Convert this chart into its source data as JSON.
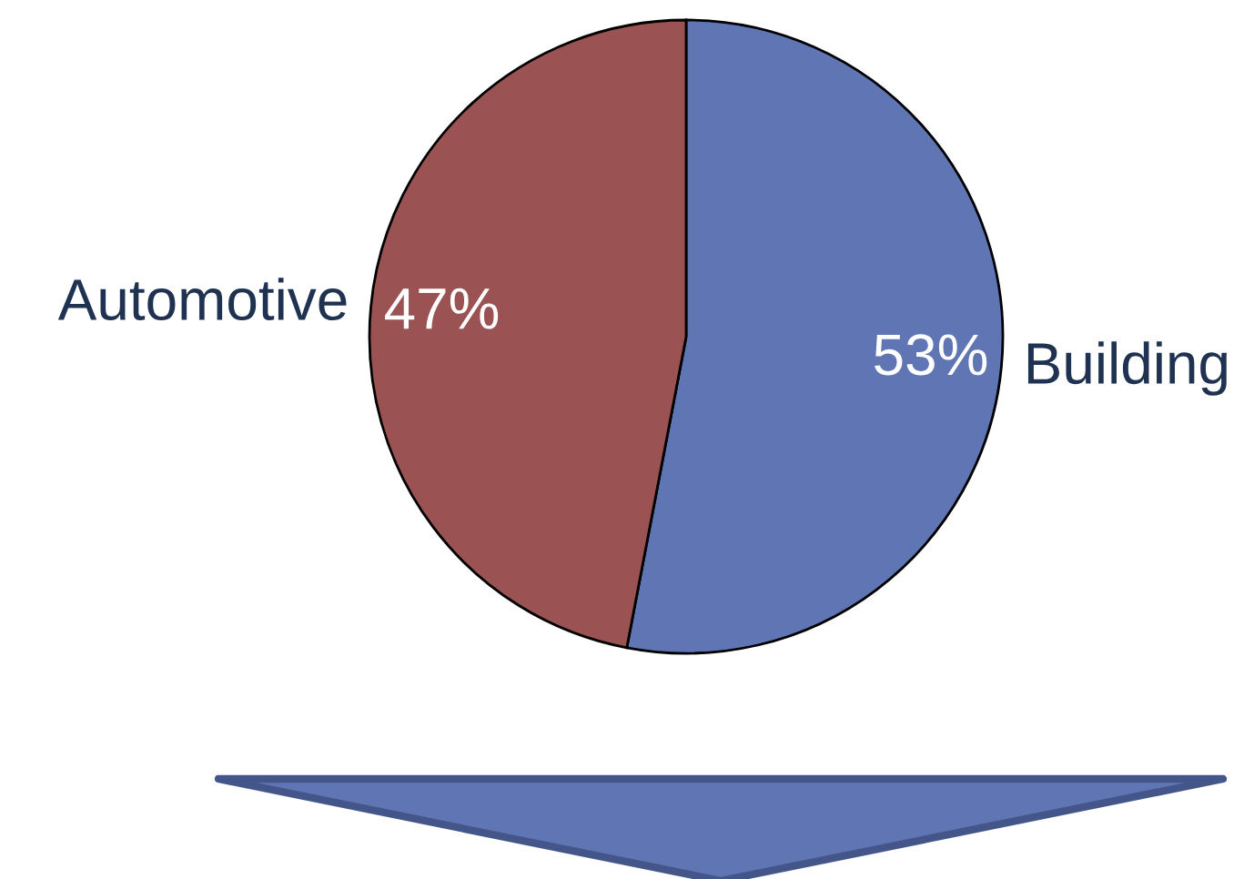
{
  "chart_data": {
    "type": "pie",
    "categories": [
      "Building",
      "Automotive"
    ],
    "values": [
      53,
      47
    ],
    "colors": [
      "#6076b4",
      "#9b5252"
    ],
    "value_labels": [
      "53%",
      "47%"
    ]
  }
}
